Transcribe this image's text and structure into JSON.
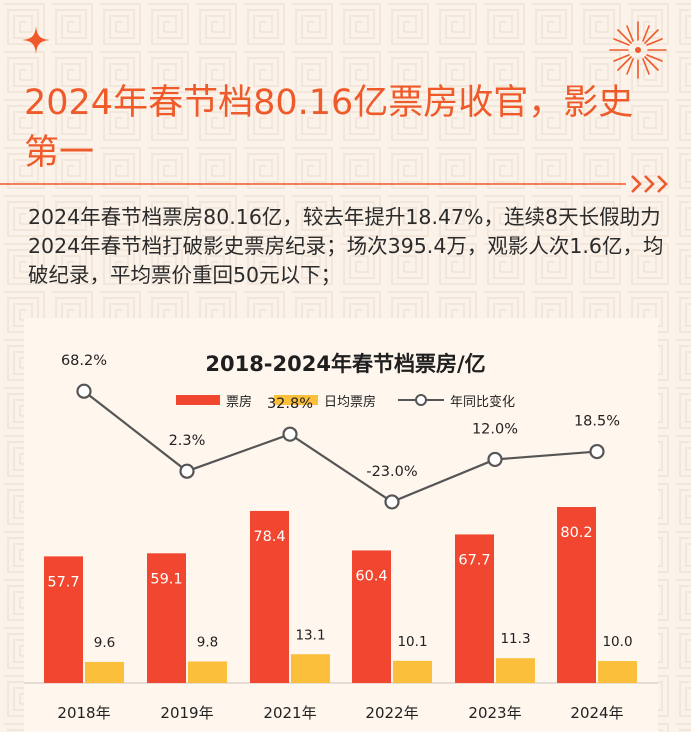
{
  "header": {
    "title": "2024年春节档80.16亿票房收官，影史第一",
    "description": "2024年春节档票房80.16亿，较去年提升18.47%，连续8天长假助力2024年春节档打破影史票房纪录；场次395.4万，观影人次1.6亿，均破纪录，平均票价重回50元以下；"
  },
  "decor": {
    "sparkle_icon": "four-point-star-icon",
    "firework_icon": "firework-icon",
    "arrows_icon": "triple-arrow-icon"
  },
  "colors": {
    "accent": "#ef5a2a",
    "bar_box_office": "#f1462f",
    "bar_daily": "#fbbf3b",
    "line": "#555555",
    "background": "#fbf3ea"
  },
  "chart_data": {
    "type": "bar",
    "title": "2018-2024年春节档票房/亿",
    "categories": [
      "2018年",
      "2019年",
      "2021年",
      "2022年",
      "2023年",
      "2024年"
    ],
    "series": [
      {
        "name": "票房",
        "type": "bar",
        "values": [
          57.7,
          59.1,
          78.4,
          60.4,
          67.7,
          80.2
        ],
        "labels": [
          "57.7",
          "59.1",
          "78.4",
          "60.4",
          "67.7",
          "80.2"
        ]
      },
      {
        "name": "日均票房",
        "type": "bar",
        "values": [
          9.6,
          9.8,
          13.1,
          10.1,
          11.3,
          10.0
        ],
        "labels": [
          "9.6",
          "9.8",
          "13.1",
          "10.1",
          "11.3",
          "10.0"
        ]
      },
      {
        "name": "年同比变化",
        "type": "line",
        "values": [
          68.2,
          2.3,
          32.8,
          -23.0,
          12.0,
          18.5
        ],
        "labels": [
          "68.2%",
          "2.3%",
          "32.8%",
          "-23.0%",
          "12.0%",
          "18.5%"
        ]
      }
    ],
    "legend_position": "top",
    "grid": false
  }
}
